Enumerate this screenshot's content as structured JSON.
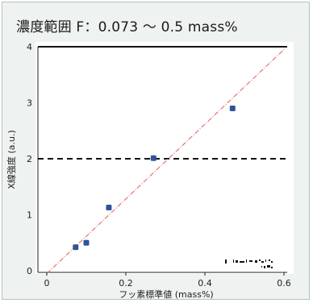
{
  "chart_data": {
    "type": "scatter",
    "title": "濃度範囲 F：0.073 〜 0.5 mass%",
    "xlabel": "フッ素標準値 (mass%)",
    "ylabel": "X線強度 (a.u.)",
    "xlim": [
      0,
      0.6
    ],
    "ylim": [
      0,
      4
    ],
    "x_ticks": [
      "0",
      "0.2",
      "0.4",
      "0.6"
    ],
    "y_ticks": [
      "0",
      "1",
      "2",
      "3",
      "4"
    ],
    "grid": false,
    "points": [
      {
        "x": 0.073,
        "y": 0.42
      },
      {
        "x": 0.1,
        "y": 0.5
      },
      {
        "x": 0.157,
        "y": 1.13
      },
      {
        "x": 0.27,
        "y": 2.01
      },
      {
        "x": 0.47,
        "y": 2.9
      }
    ],
    "fit_line": {
      "x": [
        0,
        0.6
      ],
      "y": [
        -0.05,
        3.95
      ],
      "color": "#e8736f",
      "style": "dash-dot"
    },
    "reference_lines": [
      {
        "y": 4,
        "style": "solid",
        "color": "#111111"
      },
      {
        "y": 2,
        "style": "dashed",
        "color": "#111111"
      }
    ],
    "marker_color": "#2f5597"
  }
}
